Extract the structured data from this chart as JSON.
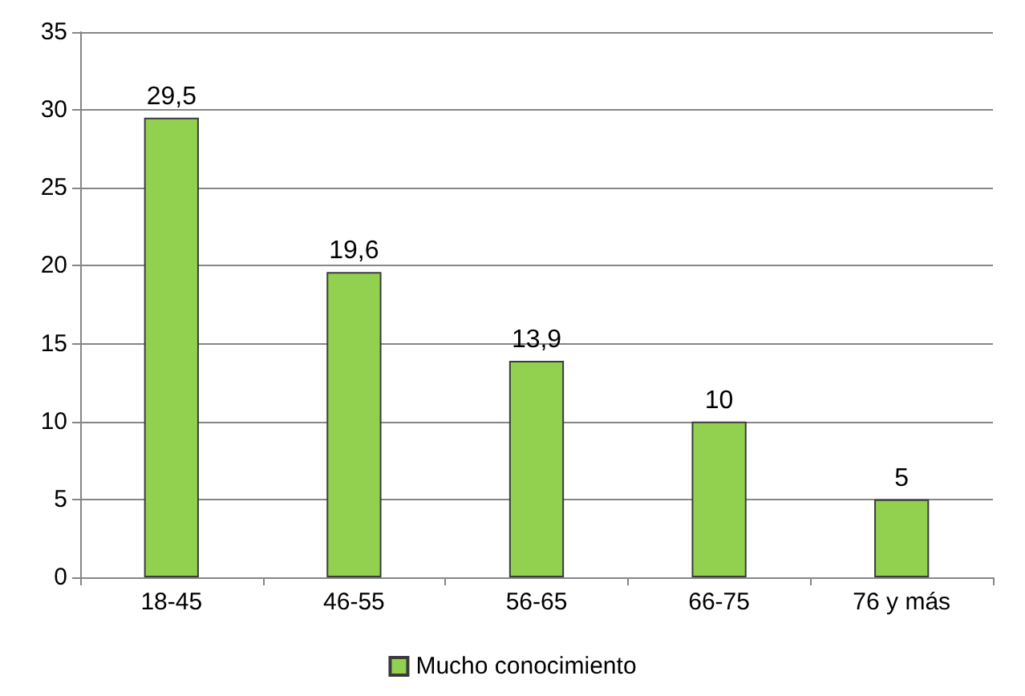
{
  "chart_data": {
    "type": "bar",
    "categories": [
      "18-45",
      "46-55",
      "56-65",
      "66-75",
      "76 y más"
    ],
    "series": [
      {
        "name": "Mucho conocimiento",
        "color": "#92d050",
        "values": [
          29.5,
          19.6,
          13.9,
          10,
          5
        ],
        "value_labels": [
          "29,5",
          "19,6",
          "13,9",
          "10",
          "5"
        ]
      }
    ],
    "ylim": [
      0,
      35
    ],
    "yticks": [
      0,
      5,
      10,
      15,
      20,
      25,
      30,
      35
    ],
    "grid": "y",
    "legend": "bottom"
  }
}
